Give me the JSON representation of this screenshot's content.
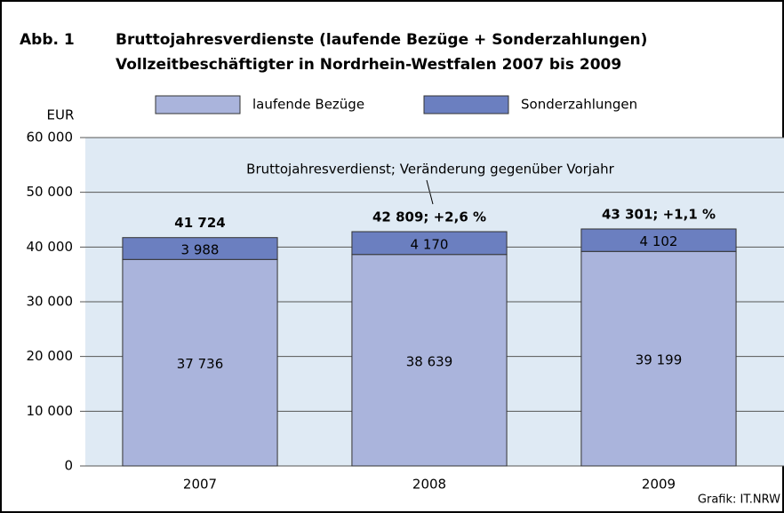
{
  "chart_data": {
    "type": "stacked_bar",
    "figure_label": "Abb. 1",
    "title_lines": [
      "Bruttojahresverdienste (laufende Bezüge + Sonderzahlungen)",
      "Vollzeitbeschäftigter in Nordrhein-Westfalen 2007 bis 2009"
    ],
    "y_axis_label": "EUR",
    "categories": [
      "2007",
      "2008",
      "2009"
    ],
    "series": [
      {
        "name": "laufende Bezüge",
        "color": "#aab4dc",
        "values": [
          37736,
          38639,
          39199
        ],
        "value_labels": [
          "37 736",
          "38 639",
          "39 199"
        ],
        "label_color": "#000000"
      },
      {
        "name": "Sonderzahlungen",
        "color": "#6b7fc0",
        "values": [
          3988,
          4170,
          4102
        ],
        "value_labels": [
          "3 988",
          "4 170",
          "4 102"
        ],
        "label_color": "#ffffff"
      }
    ],
    "total_labels": [
      "41 724",
      "42 809; +2,6 %",
      "43 301; +1,1 %"
    ],
    "annotation": "Bruttojahresverdienst; Veränderung gegenüber Vorjahr",
    "source": "Grafik: IT.NRW",
    "ylim": [
      0,
      60000
    ],
    "yticks": [
      0,
      {
        "value": 10000,
        "label": "10 000"
      },
      {
        "value": 20000,
        "label": "20 000"
      },
      {
        "value": 30000,
        "label": "30 000"
      },
      {
        "value": 40000,
        "label": "40 000"
      },
      {
        "value": 50000,
        "label": "50 000"
      },
      {
        "value": 60000,
        "label": "60 000"
      }
    ],
    "grid": true
  }
}
